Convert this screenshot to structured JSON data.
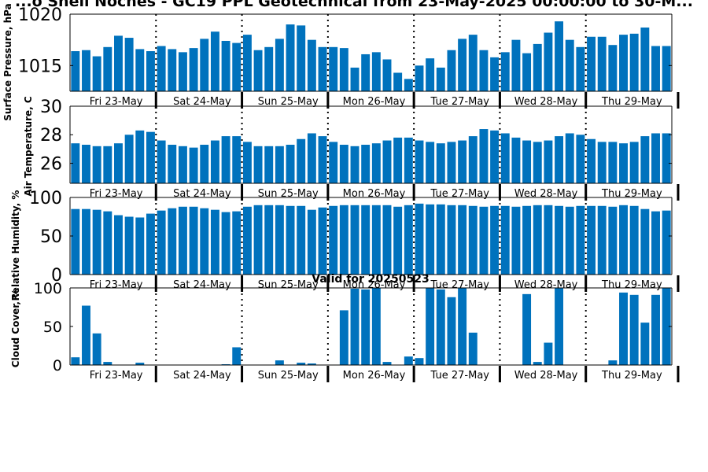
{
  "figure": {
    "title": "...o Shell Noches - GC19 PPL Geotechnical from 23-May-2025 00:00:00 to 30-M...",
    "subtitle": "Valid for 20250523"
  },
  "days": [
    "Fri 23-May",
    "Sat 24-May",
    "Sun 25-May",
    "Mon 26-May",
    "Tue 27-May",
    "Wed 28-May",
    "Thu 29-May"
  ],
  "colors": {
    "bar": "#0072bd",
    "axis": "#000000",
    "background": "#ffffff"
  },
  "chart_data": [
    {
      "type": "bar",
      "ylabel": "Surface Pressure, hPa",
      "ylim": [
        1012.5,
        1020
      ],
      "yticks": [
        1015,
        1020
      ],
      "x_step_hours": 3,
      "values": [
        1016.4,
        1016.5,
        1015.9,
        1016.8,
        1017.9,
        1017.7,
        1016.6,
        1016.4,
        1016.9,
        1016.6,
        1016.3,
        1016.7,
        1017.6,
        1018.3,
        1017.4,
        1017.2,
        1018.0,
        1016.5,
        1016.8,
        1017.6,
        1019.0,
        1018.9,
        1017.5,
        1016.8,
        1016.8,
        1016.7,
        1014.8,
        1016.1,
        1016.3,
        1015.6,
        1014.3,
        1013.7,
        1015.0,
        1015.7,
        1014.8,
        1016.5,
        1017.6,
        1018.0,
        1016.5,
        1015.8,
        1016.3,
        1017.5,
        1016.2,
        1017.1,
        1018.2,
        1019.3,
        1017.5,
        1016.8,
        1017.8,
        1017.8,
        1017.0,
        1018.0,
        1018.1,
        1018.7,
        1016.9,
        1016.9
      ]
    },
    {
      "type": "bar",
      "ylabel": "Air Temperature, C",
      "ylim": [
        24.6,
        30
      ],
      "yticks": [
        26,
        28,
        30
      ],
      "x_step_hours": 3,
      "values": [
        27.4,
        27.3,
        27.2,
        27.2,
        27.4,
        28.0,
        28.3,
        28.2,
        27.6,
        27.3,
        27.2,
        27.1,
        27.3,
        27.6,
        27.9,
        27.9,
        27.5,
        27.2,
        27.2,
        27.2,
        27.3,
        27.7,
        28.1,
        27.9,
        27.5,
        27.3,
        27.2,
        27.3,
        27.4,
        27.6,
        27.8,
        27.8,
        27.6,
        27.5,
        27.4,
        27.5,
        27.6,
        27.9,
        28.4,
        28.3,
        28.1,
        27.8,
        27.6,
        27.5,
        27.6,
        27.9,
        28.1,
        28.0,
        27.7,
        27.5,
        27.5,
        27.4,
        27.5,
        27.9,
        28.1,
        28.1
      ]
    },
    {
      "type": "bar",
      "ylabel": "Relative Humidity, %",
      "ylim": [
        0,
        100
      ],
      "yticks": [
        0,
        50,
        100
      ],
      "x_step_hours": 3,
      "values": [
        85,
        85,
        84,
        82,
        77,
        75,
        74,
        79,
        83,
        86,
        88,
        88,
        86,
        84,
        81,
        82,
        88,
        90,
        90,
        90,
        89,
        89,
        84,
        87,
        89,
        90,
        90,
        90,
        90,
        90,
        88,
        90,
        92,
        91,
        91,
        90,
        90,
        89,
        88,
        89,
        89,
        88,
        89,
        90,
        90,
        89,
        88,
        89,
        89,
        89,
        88,
        90,
        89,
        85,
        82,
        83
      ]
    },
    {
      "type": "bar",
      "ylabel": "Cloud Cover, %",
      "ylim": [
        0,
        100
      ],
      "yticks": [
        0,
        50,
        100
      ],
      "x_step_hours": 3,
      "values": [
        10,
        77,
        41,
        4,
        0,
        0,
        3,
        0,
        0,
        0,
        0,
        0,
        0,
        0,
        1,
        23,
        0,
        0,
        0,
        6,
        0,
        3,
        2,
        0,
        0,
        71,
        99,
        98,
        100,
        4,
        0,
        11,
        9,
        100,
        98,
        88,
        100,
        42,
        0,
        0,
        0,
        0,
        92,
        4,
        29,
        100,
        0,
        0,
        0,
        0,
        6,
        94,
        91,
        55,
        91,
        100
      ]
    }
  ]
}
